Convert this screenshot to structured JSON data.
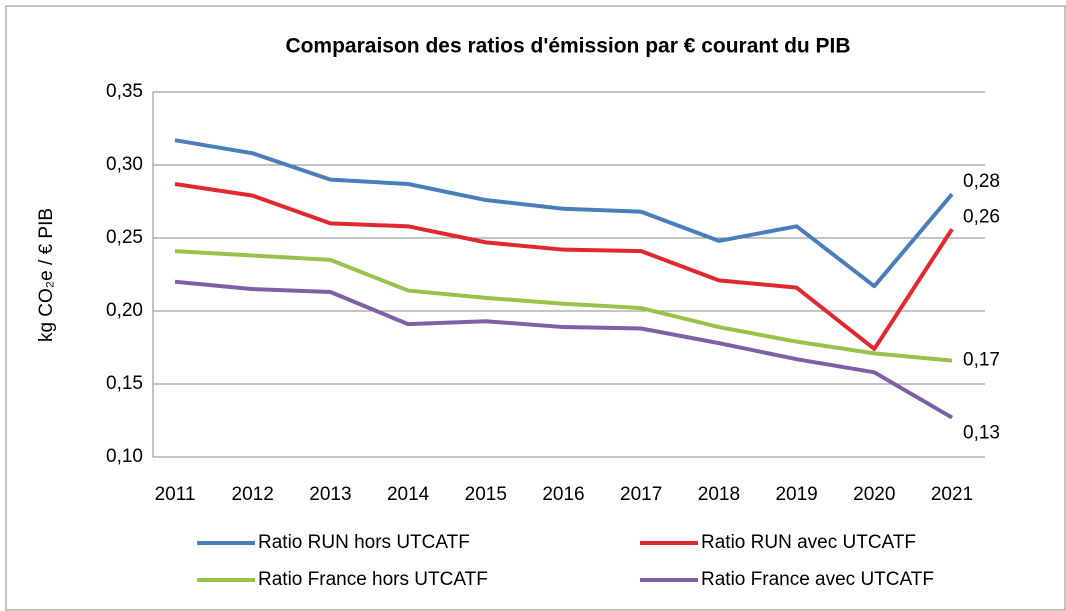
{
  "chart_data": {
    "type": "line",
    "title": "Comparaison des ratios d'émission par € courant du PIB",
    "y_label": "kg CO₂e / € PIB",
    "categories": [
      "2011",
      "2012",
      "2013",
      "2014",
      "2015",
      "2016",
      "2017",
      "2018",
      "2019",
      "2020",
      "2021"
    ],
    "ylim": [
      0.1,
      0.35
    ],
    "yticks": [
      {
        "value": 0.1,
        "label": "0,10"
      },
      {
        "value": 0.15,
        "label": "0,15"
      },
      {
        "value": 0.2,
        "label": "0,20"
      },
      {
        "value": 0.25,
        "label": "0,25"
      },
      {
        "value": 0.3,
        "label": "0,30"
      },
      {
        "value": 0.35,
        "label": "0,35"
      }
    ],
    "grid": true,
    "legend": "bottom",
    "series": [
      {
        "name": "Ratio RUN hors UTCATF",
        "color": "#4a7ebb",
        "values": [
          0.317,
          0.308,
          0.29,
          0.287,
          0.276,
          0.27,
          0.268,
          0.248,
          0.258,
          0.217,
          0.28
        ],
        "value_labels": [
          null,
          null,
          null,
          null,
          null,
          null,
          null,
          null,
          null,
          null,
          "0,28"
        ]
      },
      {
        "name": "Ratio RUN avec UTCATF",
        "color": "#e0282e",
        "values": [
          0.287,
          0.279,
          0.26,
          0.258,
          0.247,
          0.242,
          0.241,
          0.221,
          0.216,
          0.174,
          0.256
        ],
        "value_labels": [
          null,
          null,
          null,
          null,
          null,
          null,
          null,
          null,
          null,
          null,
          "0,26"
        ]
      },
      {
        "name": "Ratio France hors UTCATF",
        "color": "#98c24a",
        "values": [
          0.241,
          0.238,
          0.235,
          0.214,
          0.209,
          0.205,
          0.202,
          0.189,
          0.179,
          0.171,
          0.166
        ],
        "value_labels": [
          null,
          null,
          null,
          null,
          null,
          null,
          null,
          null,
          null,
          null,
          "0,17"
        ]
      },
      {
        "name": "Ratio France avec UTCATF",
        "color": "#7f5fa5",
        "values": [
          0.22,
          0.215,
          0.213,
          0.191,
          0.193,
          0.189,
          0.188,
          0.178,
          0.167,
          0.158,
          0.127
        ],
        "value_labels": [
          null,
          null,
          null,
          null,
          null,
          null,
          null,
          null,
          null,
          null,
          "0,13"
        ]
      }
    ]
  }
}
